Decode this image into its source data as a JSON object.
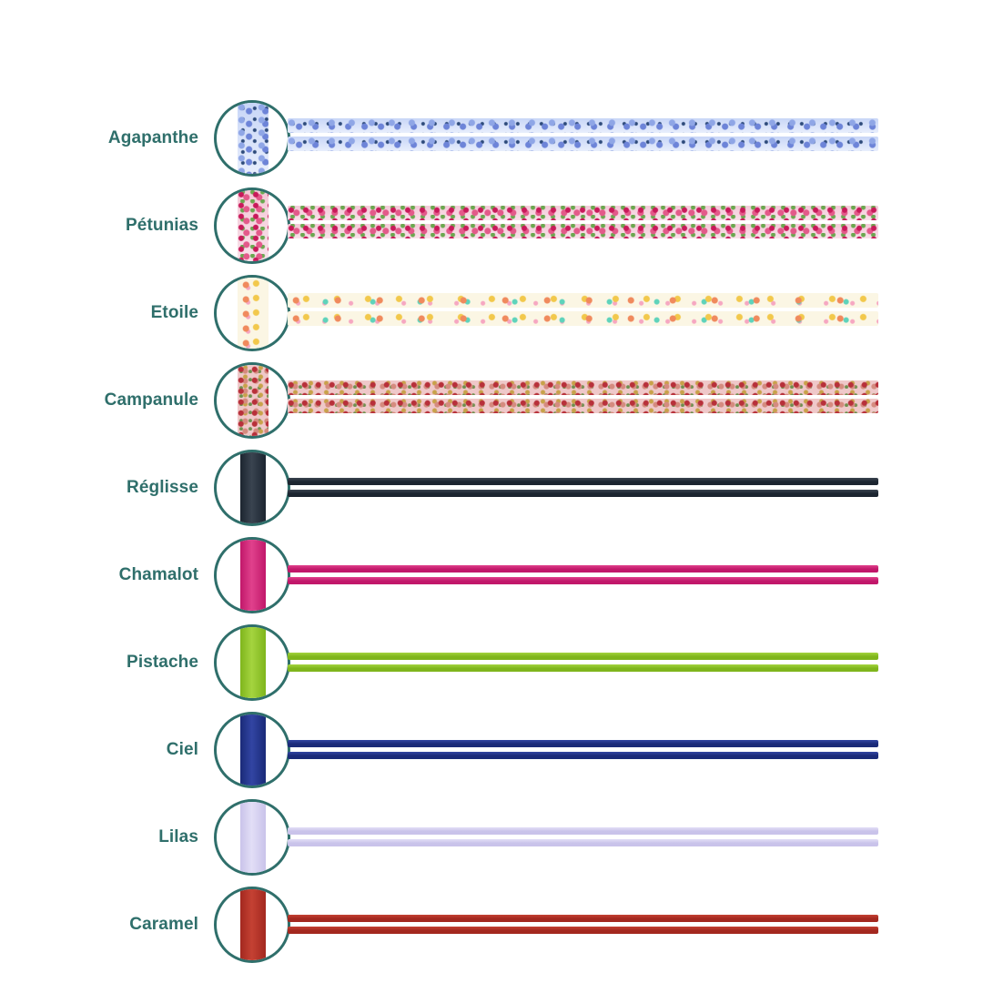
{
  "colors": {
    "label": "#2f6f6b",
    "ring": "#2f6f6b"
  },
  "rows": [
    {
      "name": "Agapanthe",
      "pattern": "floral-blue",
      "palette": [
        "#e8eefc",
        "#8fa6e6",
        "#6d84d8",
        "#2d4a7a",
        "#c8d6f7"
      ]
    },
    {
      "name": "Pétunias",
      "pattern": "floral-pink",
      "palette": [
        "#f4c9d7",
        "#e35a8a",
        "#c8195a",
        "#6aa84f",
        "#f8e1ea"
      ]
    },
    {
      "name": "Etoile",
      "pattern": "stars",
      "palette": [
        "#fbf6e4",
        "#f08a5d",
        "#f2c84b",
        "#5fd3bb",
        "#f6a7c1"
      ]
    },
    {
      "name": "Campanule",
      "pattern": "floral-mixed",
      "palette": [
        "#efc8c9",
        "#b8303a",
        "#d58b7f",
        "#c8a24a",
        "#6f8f4e"
      ]
    },
    {
      "name": "Réglisse",
      "pattern": "solid-cord",
      "palette": [
        "#1c2530",
        "#3a4450"
      ]
    },
    {
      "name": "Chamalot",
      "pattern": "solid-cord",
      "palette": [
        "#c1176a",
        "#e0418c"
      ]
    },
    {
      "name": "Pistache",
      "pattern": "solid-cord",
      "palette": [
        "#7fb51c",
        "#a4d43f"
      ]
    },
    {
      "name": "Ciel",
      "pattern": "solid-cord",
      "palette": [
        "#1a2a78",
        "#3245a3"
      ]
    },
    {
      "name": "Lilas",
      "pattern": "solid-cord",
      "palette": [
        "#c9c3ea",
        "#e2def6"
      ]
    },
    {
      "name": "Caramel",
      "pattern": "solid-cord",
      "palette": [
        "#a3281f",
        "#c44133"
      ]
    }
  ]
}
